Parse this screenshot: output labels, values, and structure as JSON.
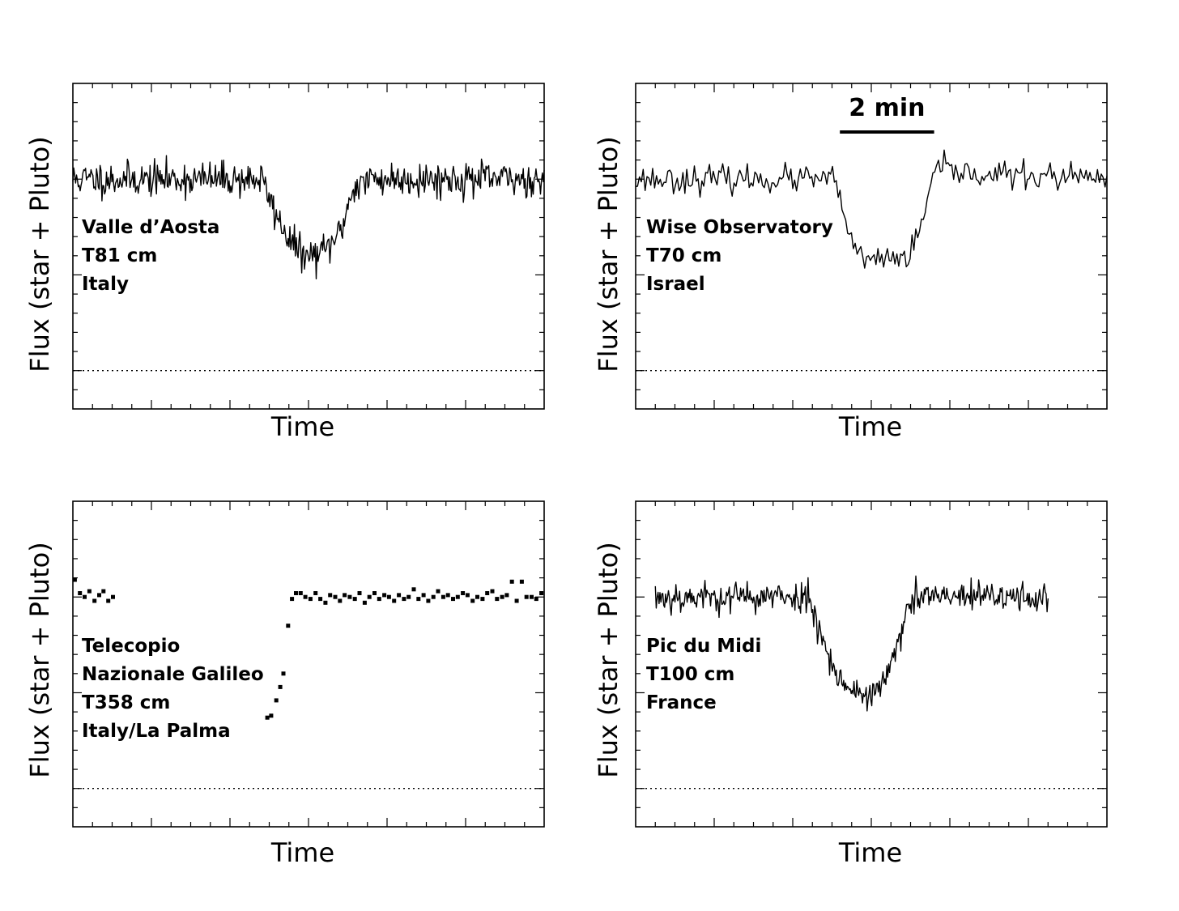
{
  "chart_data": [
    {
      "type": "line",
      "style": "line",
      "xlabel": "Time",
      "ylabel": "Flux (star + Pluto)",
      "station": [
        "Valle d’Aosta",
        "T81 cm",
        "Italy"
      ],
      "xlim": [
        0,
        12
      ],
      "ylim": [
        -0.2,
        1.5
      ],
      "zero_line": 0,
      "grid": false,
      "x_start": 0.0,
      "x_end": 12.0,
      "n_points": 520,
      "baseline": 1.0,
      "noise": 0.045,
      "profile": [
        [
          0.0,
          1.0
        ],
        [
          4.8,
          1.0
        ],
        [
          5.25,
          0.78
        ],
        [
          5.6,
          0.66
        ],
        [
          5.95,
          0.59
        ],
        [
          6.4,
          0.62
        ],
        [
          6.8,
          0.72
        ],
        [
          7.15,
          0.96
        ],
        [
          7.6,
          1.0
        ],
        [
          12.0,
          1.0
        ]
      ]
    },
    {
      "type": "line",
      "style": "line",
      "xlabel": "Time",
      "ylabel": "Flux (star + Pluto)",
      "station": [
        "Wise Observatory",
        "T70 cm",
        "Israel"
      ],
      "xlim": [
        0,
        12
      ],
      "ylim": [
        -0.2,
        1.5
      ],
      "zero_line": 0,
      "grid": false,
      "x_start": 0.0,
      "x_end": 12.0,
      "n_points": 250,
      "baseline": 1.0,
      "noise": 0.035,
      "profile": [
        [
          0.0,
          1.0
        ],
        [
          5.0,
          1.0
        ],
        [
          5.3,
          0.85
        ],
        [
          5.55,
          0.62
        ],
        [
          5.75,
          0.58
        ],
        [
          6.3,
          0.58
        ],
        [
          7.0,
          0.6
        ],
        [
          7.35,
          0.8
        ],
        [
          7.6,
          1.05
        ],
        [
          8.5,
          1.03
        ],
        [
          12.0,
          1.0
        ]
      ],
      "scale_bar": {
        "label": "2 min",
        "length": 2.4,
        "start": 5.2
      }
    },
    {
      "type": "scatter",
      "style": "points",
      "xlabel": "Time",
      "ylabel": "Flux (star + Pluto)",
      "station": [
        "Telecopio",
        "Nazionale  Galileo",
        "T358 cm",
        "Italy/La Palma"
      ],
      "xlim": [
        0,
        12
      ],
      "ylim": [
        -0.2,
        1.5
      ],
      "zero_line": 0,
      "grid": false,
      "points": [
        [
          0.05,
          1.09
        ],
        [
          0.18,
          1.02
        ],
        [
          0.3,
          1.0
        ],
        [
          0.42,
          1.03
        ],
        [
          0.55,
          0.98
        ],
        [
          0.67,
          1.01
        ],
        [
          0.78,
          1.03
        ],
        [
          0.9,
          0.98
        ],
        [
          1.02,
          1.0
        ],
        [
          4.95,
          0.37
        ],
        [
          5.05,
          0.38
        ],
        [
          5.18,
          0.46
        ],
        [
          5.28,
          0.53
        ],
        [
          5.36,
          0.6
        ],
        [
          5.48,
          0.85
        ],
        [
          5.58,
          0.99
        ],
        [
          5.68,
          1.02
        ],
        [
          5.8,
          1.02
        ],
        [
          5.92,
          1.0
        ],
        [
          6.05,
          0.99
        ],
        [
          6.18,
          1.02
        ],
        [
          6.3,
          0.99
        ],
        [
          6.43,
          0.97
        ],
        [
          6.55,
          1.01
        ],
        [
          6.68,
          1.0
        ],
        [
          6.8,
          0.98
        ],
        [
          6.92,
          1.01
        ],
        [
          7.05,
          1.0
        ],
        [
          7.18,
          0.99
        ],
        [
          7.3,
          1.02
        ],
        [
          7.43,
          0.97
        ],
        [
          7.55,
          1.0
        ],
        [
          7.68,
          1.02
        ],
        [
          7.8,
          0.99
        ],
        [
          7.93,
          1.01
        ],
        [
          8.05,
          1.0
        ],
        [
          8.18,
          0.98
        ],
        [
          8.3,
          1.01
        ],
        [
          8.43,
          0.99
        ],
        [
          8.55,
          1.0
        ],
        [
          8.68,
          1.04
        ],
        [
          8.8,
          0.99
        ],
        [
          8.93,
          1.01
        ],
        [
          9.05,
          0.98
        ],
        [
          9.18,
          1.0
        ],
        [
          9.3,
          1.03
        ],
        [
          9.43,
          1.0
        ],
        [
          9.55,
          1.01
        ],
        [
          9.68,
          0.99
        ],
        [
          9.8,
          1.0
        ],
        [
          9.93,
          1.02
        ],
        [
          10.05,
          1.01
        ],
        [
          10.18,
          0.98
        ],
        [
          10.3,
          1.0
        ],
        [
          10.43,
          0.99
        ],
        [
          10.55,
          1.02
        ],
        [
          10.68,
          1.03
        ],
        [
          10.8,
          0.99
        ],
        [
          10.93,
          1.0
        ],
        [
          11.05,
          1.01
        ],
        [
          11.18,
          1.08
        ],
        [
          11.3,
          0.98
        ],
        [
          11.43,
          1.08
        ],
        [
          11.55,
          1.0
        ],
        [
          11.68,
          1.0
        ],
        [
          11.8,
          0.99
        ],
        [
          11.93,
          1.02
        ]
      ]
    },
    {
      "type": "line",
      "style": "line",
      "xlabel": "Time",
      "ylabel": "Flux (star + Pluto)",
      "station": [
        "Pic du Midi",
        "T100 cm",
        "France"
      ],
      "xlim": [
        0,
        12
      ],
      "ylim": [
        -0.2,
        1.5
      ],
      "zero_line": 0,
      "grid": false,
      "x_start": 0.5,
      "x_end": 10.5,
      "n_points": 420,
      "baseline": 1.0,
      "noise": 0.04,
      "profile": [
        [
          0.5,
          1.0
        ],
        [
          4.4,
          1.0
        ],
        [
          4.75,
          0.8
        ],
        [
          5.1,
          0.6
        ],
        [
          5.4,
          0.52
        ],
        [
          5.85,
          0.49
        ],
        [
          6.2,
          0.52
        ],
        [
          6.55,
          0.66
        ],
        [
          6.85,
          0.88
        ],
        [
          7.1,
          1.0
        ],
        [
          10.5,
          1.0
        ]
      ]
    }
  ]
}
